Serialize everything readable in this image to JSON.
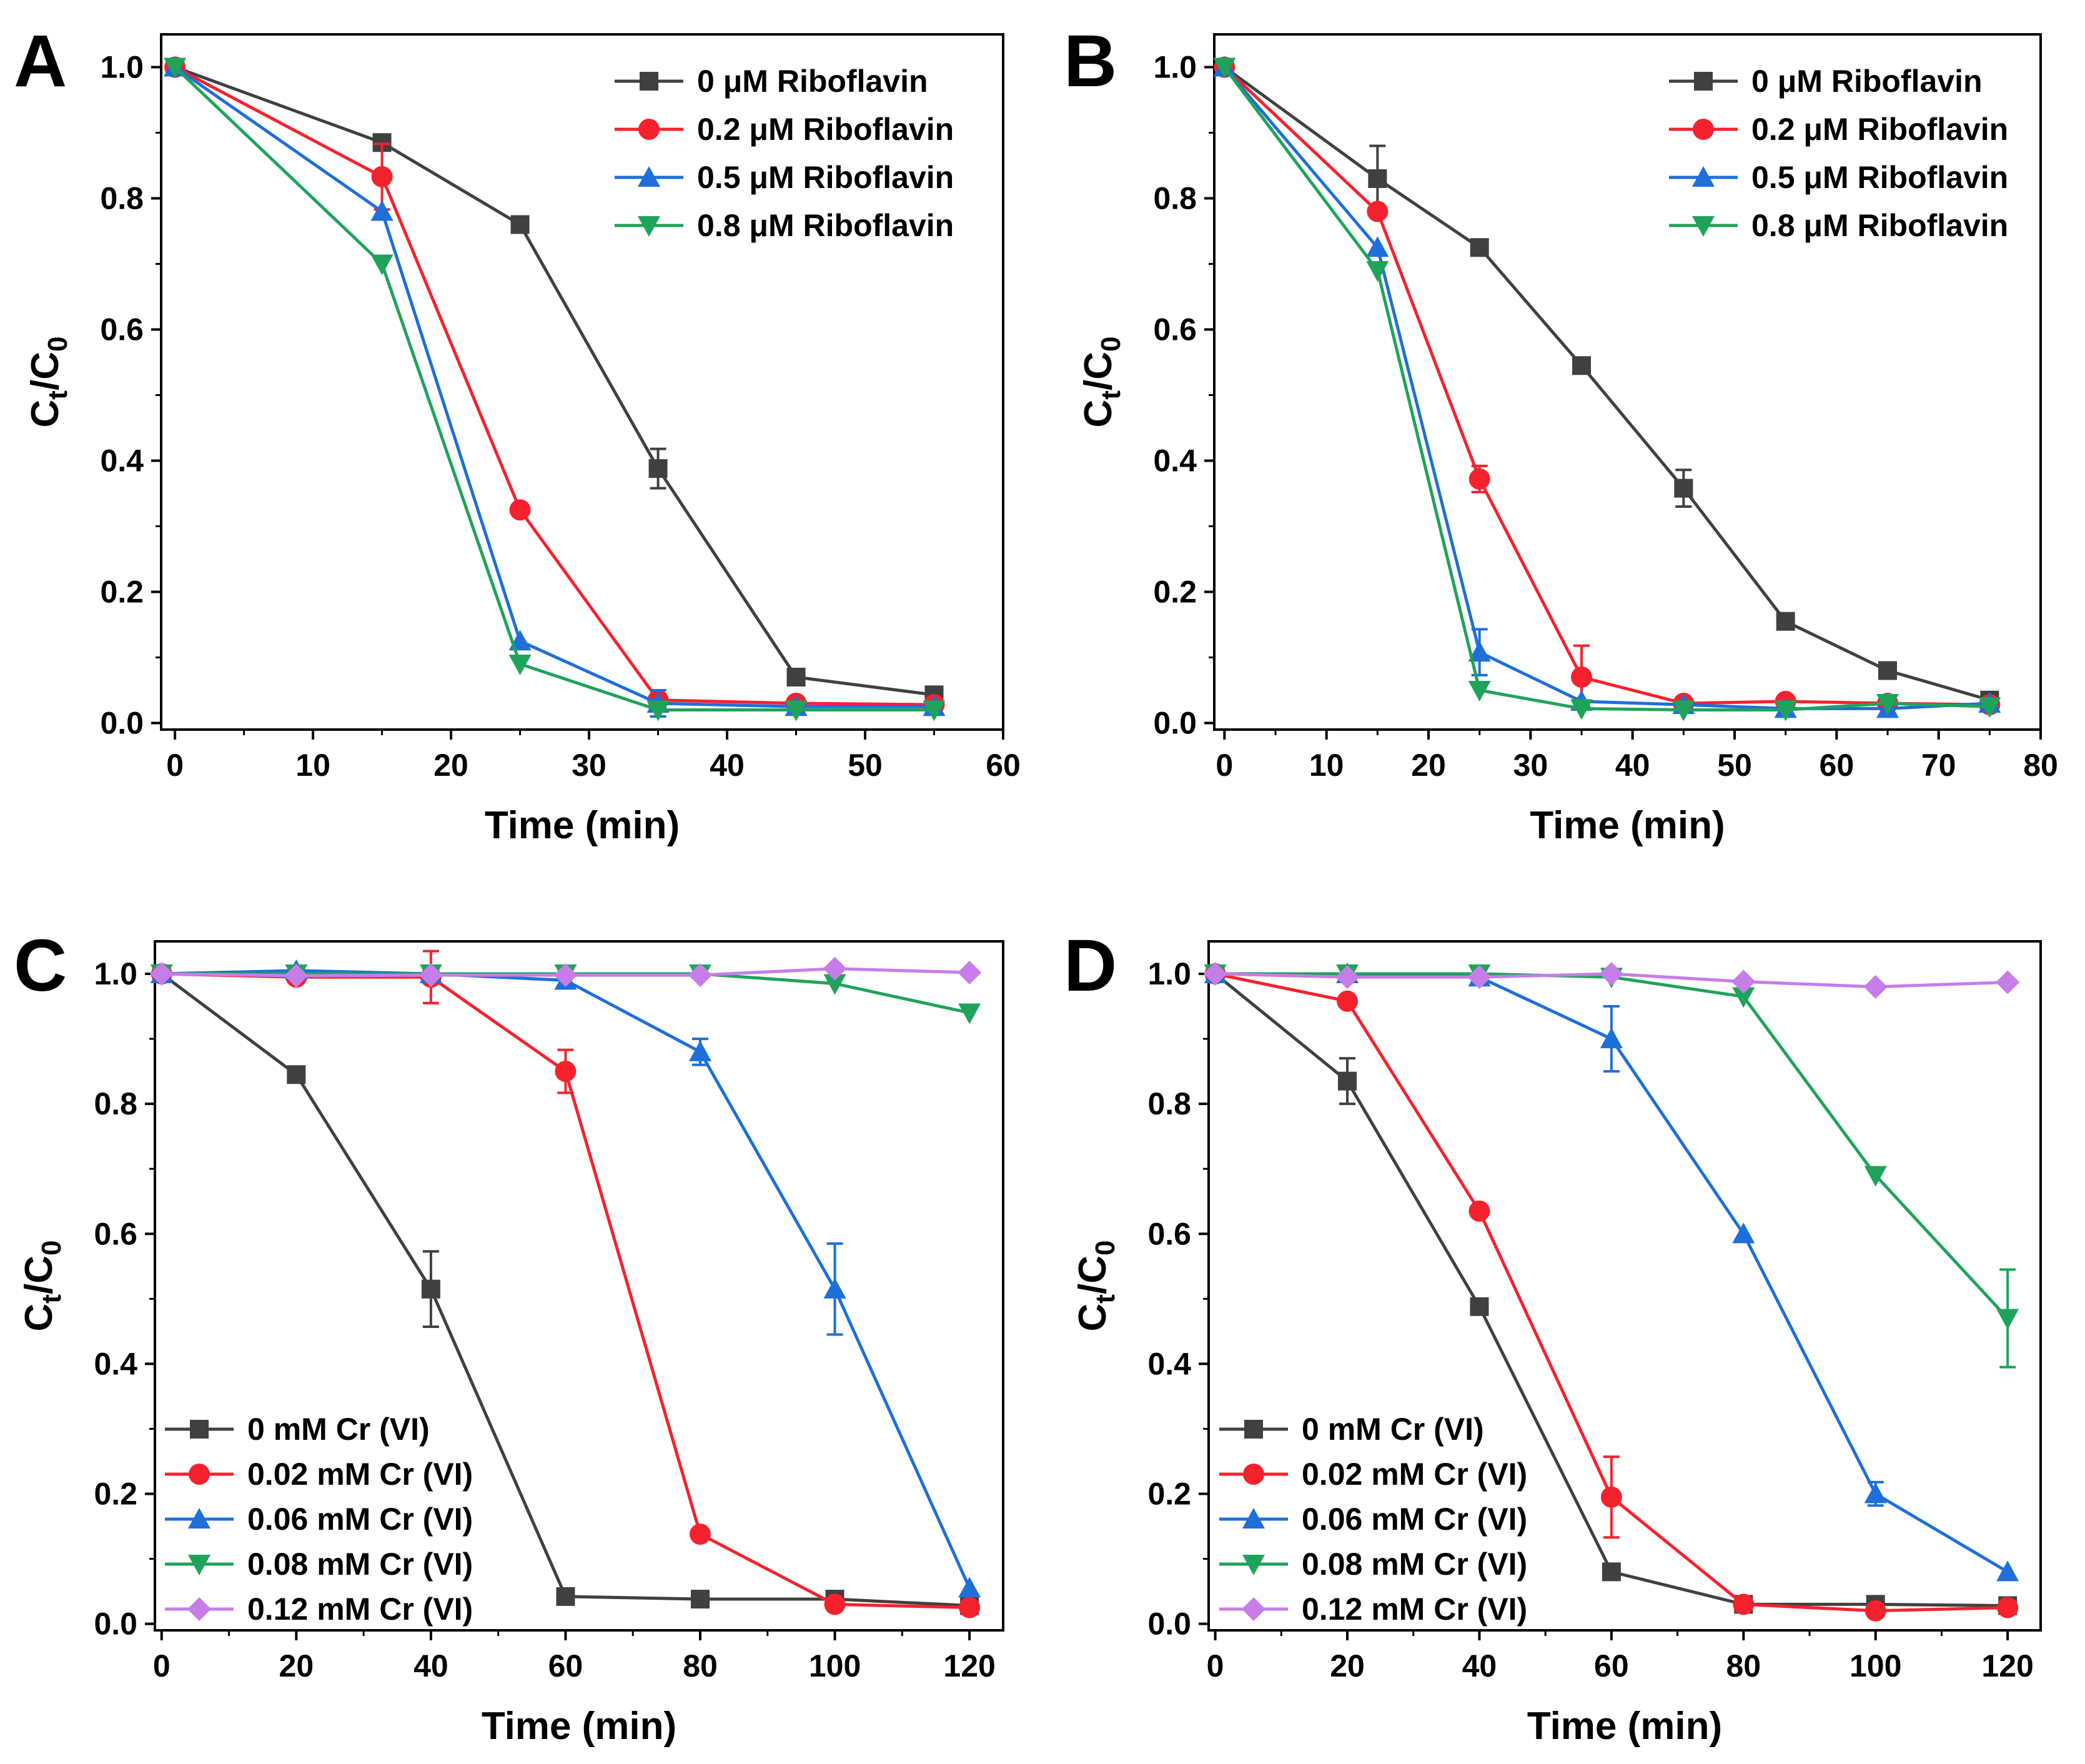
{
  "chart_data": [
    {
      "type": "line",
      "panel_label": "A",
      "xlabel": "Time (min)",
      "ylabel": {
        "main": "C",
        "sub1": "t",
        "mid": "/C",
        "sub2": "0"
      },
      "xlim": [
        -1,
        60
      ],
      "ylim": [
        -0.01,
        1.05
      ],
      "xticks": [
        0,
        10,
        20,
        30,
        40,
        50,
        60
      ],
      "yticks": [
        0.0,
        0.2,
        0.4,
        0.6,
        0.8,
        1.0
      ],
      "xtick_labels": [
        "0",
        "10",
        "20",
        "30",
        "40",
        "50",
        "60"
      ],
      "ytick_labels": [
        "0.0",
        "0.2",
        "0.4",
        "0.6",
        "0.8",
        "1.0"
      ],
      "legend_position": "top-right",
      "series": [
        {
          "name": "0 μM Riboflavin",
          "color": "#404040",
          "marker": "square",
          "x": [
            0,
            15,
            25,
            35,
            45,
            55
          ],
          "y": [
            1.0,
            0.885,
            0.76,
            0.388,
            0.07,
            0.043
          ],
          "err": [
            0,
            0,
            0,
            0.03,
            0,
            0
          ]
        },
        {
          "name": "0.2 μM Riboflavin",
          "color": "#f5222d",
          "marker": "circle",
          "x": [
            0,
            15,
            25,
            35,
            45,
            55
          ],
          "y": [
            1.0,
            0.833,
            0.325,
            0.035,
            0.03,
            0.028
          ],
          "err": [
            0,
            0.05,
            0,
            0,
            0,
            0
          ]
        },
        {
          "name": "0.5 μM Riboflavin",
          "color": "#1e6fd9",
          "marker": "triangle-up",
          "x": [
            0,
            15,
            25,
            35,
            45,
            55
          ],
          "y": [
            1.0,
            0.78,
            0.125,
            0.03,
            0.025,
            0.025
          ],
          "err": [
            0,
            0,
            0,
            0.02,
            0,
            0
          ]
        },
        {
          "name": "0.8 μM Riboflavin",
          "color": "#1fa35b",
          "marker": "triangle-down",
          "x": [
            0,
            15,
            25,
            35,
            45,
            55
          ],
          "y": [
            1.0,
            0.7,
            0.09,
            0.02,
            0.02,
            0.02
          ],
          "err": [
            0,
            0,
            0,
            0,
            0,
            0
          ]
        }
      ]
    },
    {
      "type": "line",
      "panel_label": "B",
      "xlabel": "Time (min)",
      "ylabel": {
        "main": "C",
        "sub1": "t",
        "mid": "/C",
        "sub2": "0"
      },
      "xlim": [
        -1,
        80
      ],
      "ylim": [
        -0.01,
        1.05
      ],
      "xticks": [
        0,
        10,
        20,
        30,
        40,
        50,
        60,
        70,
        80
      ],
      "yticks": [
        0.0,
        0.2,
        0.4,
        0.6,
        0.8,
        1.0
      ],
      "xtick_labels": [
        "0",
        "10",
        "20",
        "30",
        "40",
        "50",
        "60",
        "70",
        "80"
      ],
      "ytick_labels": [
        "0.0",
        "0.2",
        "0.4",
        "0.6",
        "0.8",
        "1.0"
      ],
      "legend_position": "top-right",
      "series": [
        {
          "name": "0 μM Riboflavin",
          "color": "#404040",
          "marker": "square",
          "x": [
            0,
            15,
            25,
            35,
            45,
            55,
            65,
            75
          ],
          "y": [
            1.0,
            0.83,
            0.725,
            0.545,
            0.358,
            0.155,
            0.08,
            0.035
          ],
          "err": [
            0,
            0.05,
            0,
            0,
            0.028,
            0,
            0,
            0
          ]
        },
        {
          "name": "0.2 μM Riboflavin",
          "color": "#f5222d",
          "marker": "circle",
          "x": [
            0,
            15,
            25,
            35,
            45,
            55,
            65,
            75
          ],
          "y": [
            1.0,
            0.78,
            0.372,
            0.07,
            0.03,
            0.033,
            0.03,
            0.028
          ],
          "err": [
            0,
            0,
            0.02,
            0.048,
            0,
            0,
            0,
            0
          ]
        },
        {
          "name": "0.5 μM Riboflavin",
          "color": "#1e6fd9",
          "marker": "triangle-up",
          "x": [
            0,
            15,
            25,
            35,
            45,
            55,
            65,
            75
          ],
          "y": [
            1.0,
            0.725,
            0.108,
            0.033,
            0.028,
            0.022,
            0.022,
            0.03
          ],
          "err": [
            0,
            0,
            0.035,
            0,
            0,
            0,
            0,
            0
          ]
        },
        {
          "name": "0.8 μM Riboflavin",
          "color": "#1fa35b",
          "marker": "triangle-down",
          "x": [
            0,
            15,
            25,
            35,
            45,
            55,
            65,
            75
          ],
          "y": [
            1.0,
            0.69,
            0.05,
            0.022,
            0.02,
            0.02,
            0.03,
            0.025
          ],
          "err": [
            0,
            0,
            0,
            0,
            0,
            0,
            0,
            0
          ]
        }
      ]
    },
    {
      "type": "line",
      "panel_label": "C",
      "xlabel": "Time (min)",
      "ylabel": {
        "main": "C",
        "sub1": "t",
        "mid": "/C",
        "sub2": "0"
      },
      "xlim": [
        -1,
        125
      ],
      "ylim": [
        -0.01,
        1.05
      ],
      "xticks": [
        0,
        20,
        40,
        60,
        80,
        100,
        120
      ],
      "yticks": [
        0.0,
        0.2,
        0.4,
        0.6,
        0.8,
        1.0
      ],
      "xtick_labels": [
        "0",
        "20",
        "40",
        "60",
        "80",
        "100",
        "120"
      ],
      "ytick_labels": [
        "0.0",
        "0.2",
        "0.4",
        "0.6",
        "0.8",
        "1.0"
      ],
      "legend_position": "bottom-left",
      "series": [
        {
          "name": "0 mM Cr (VI)",
          "color": "#404040",
          "marker": "square",
          "x": [
            0,
            20,
            40,
            60,
            80,
            100,
            120
          ],
          "y": [
            1.0,
            0.845,
            0.515,
            0.042,
            0.038,
            0.038,
            0.028
          ],
          "err": [
            0,
            0,
            0.058,
            0,
            0,
            0,
            0
          ]
        },
        {
          "name": "0.02 mM Cr (VI)",
          "color": "#f5222d",
          "marker": "circle",
          "x": [
            0,
            20,
            40,
            60,
            80,
            100,
            120
          ],
          "y": [
            1.0,
            0.995,
            0.995,
            0.85,
            0.138,
            0.03,
            0.025
          ],
          "err": [
            0,
            0,
            0.04,
            0.033,
            0,
            0,
            0
          ]
        },
        {
          "name": "0.06 mM Cr (VI)",
          "color": "#1e6fd9",
          "marker": "triangle-up",
          "x": [
            0,
            20,
            40,
            60,
            80,
            100,
            120
          ],
          "y": [
            1.0,
            1.005,
            1.0,
            0.99,
            0.88,
            0.515,
            0.055
          ],
          "err": [
            0,
            0,
            0,
            0,
            0.02,
            0.07,
            0
          ]
        },
        {
          "name": "0.08 mM Cr (VI)",
          "color": "#1fa35b",
          "marker": "triangle-down",
          "x": [
            0,
            20,
            40,
            60,
            80,
            100,
            120
          ],
          "y": [
            1.0,
            1.0,
            1.0,
            1.0,
            1.0,
            0.985,
            0.94
          ],
          "err": [
            0,
            0,
            0,
            0,
            0,
            0,
            0
          ]
        },
        {
          "name": "0.12 mM Cr (VI)",
          "color": "#c77de8",
          "marker": "diamond",
          "x": [
            0,
            20,
            40,
            60,
            80,
            100,
            120
          ],
          "y": [
            1.0,
            0.997,
            0.998,
            0.998,
            0.998,
            1.008,
            1.002
          ],
          "err": [
            0,
            0,
            0,
            0,
            0,
            0,
            0
          ]
        }
      ]
    },
    {
      "type": "line",
      "panel_label": "D",
      "xlabel": "Time (min)",
      "ylabel": {
        "main": "C",
        "sub1": "t",
        "mid": "/C",
        "sub2": "0"
      },
      "xlim": [
        -1,
        125
      ],
      "ylim": [
        -0.01,
        1.05
      ],
      "xticks": [
        0,
        20,
        40,
        60,
        80,
        100,
        120
      ],
      "yticks": [
        0.0,
        0.2,
        0.4,
        0.6,
        0.8,
        1.0
      ],
      "xtick_labels": [
        "0",
        "20",
        "40",
        "60",
        "80",
        "100",
        "120"
      ],
      "ytick_labels": [
        "0.0",
        "0.2",
        "0.4",
        "0.6",
        "0.8",
        "1.0"
      ],
      "legend_position": "bottom-left",
      "series": [
        {
          "name": "0 mM Cr (VI)",
          "color": "#404040",
          "marker": "square",
          "x": [
            0,
            20,
            40,
            60,
            80,
            100,
            120
          ],
          "y": [
            1.0,
            0.835,
            0.488,
            0.08,
            0.03,
            0.03,
            0.028
          ],
          "err": [
            0,
            0.035,
            0,
            0,
            0,
            0,
            0
          ]
        },
        {
          "name": "0.02 mM Cr (VI)",
          "color": "#f5222d",
          "marker": "circle",
          "x": [
            0,
            20,
            40,
            60,
            80,
            100,
            120
          ],
          "y": [
            1.0,
            0.958,
            0.635,
            0.195,
            0.03,
            0.02,
            0.025
          ],
          "err": [
            0,
            0,
            0,
            0.062,
            0,
            0,
            0
          ]
        },
        {
          "name": "0.06 mM Cr (VI)",
          "color": "#1e6fd9",
          "marker": "triangle-up",
          "x": [
            0,
            20,
            40,
            60,
            80,
            100,
            120
          ],
          "y": [
            1.0,
            1.0,
            0.995,
            0.9,
            0.6,
            0.2,
            0.08
          ],
          "err": [
            0,
            0,
            0,
            0.05,
            0,
            0.018,
            0
          ]
        },
        {
          "name": "0.08 mM Cr (VI)",
          "color": "#1fa35b",
          "marker": "triangle-down",
          "x": [
            0,
            20,
            40,
            60,
            80,
            100,
            120
          ],
          "y": [
            1.0,
            1.0,
            1.0,
            0.995,
            0.965,
            0.69,
            0.47
          ],
          "err": [
            0,
            0,
            0,
            0,
            0,
            0,
            0.075
          ]
        },
        {
          "name": "0.12 mM Cr (VI)",
          "color": "#c77de8",
          "marker": "diamond",
          "x": [
            0,
            20,
            40,
            60,
            80,
            100,
            120
          ],
          "y": [
            1.0,
            0.995,
            0.995,
            1.0,
            0.988,
            0.98,
            0.987
          ],
          "err": [
            0,
            0,
            0,
            0,
            0,
            0,
            0
          ]
        }
      ]
    }
  ]
}
